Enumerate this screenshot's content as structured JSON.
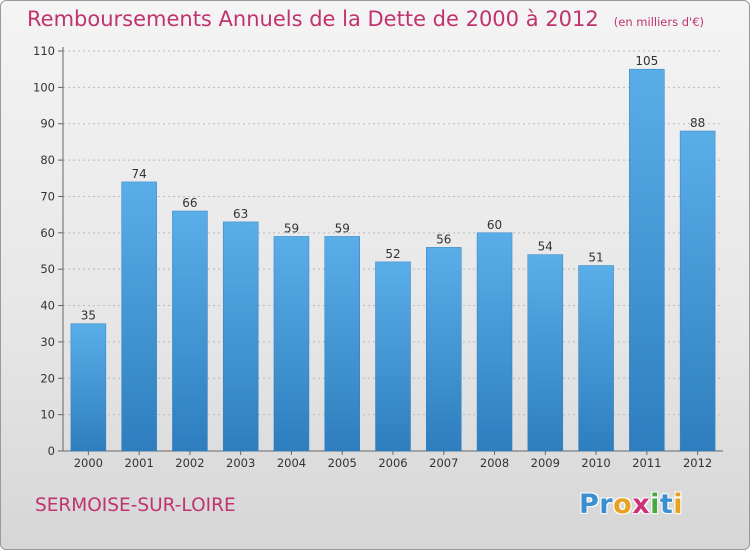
{
  "header": {
    "title": "Remboursements Annuels de la Dette de 2000 à 2012",
    "unit": "(en milliers d'€)"
  },
  "footer": {
    "town": "SERMOISE-SUR-LOIRE",
    "logo_letters": [
      {
        "ch": "P",
        "color": "#3a8fd0"
      },
      {
        "ch": "r",
        "color": "#3a8fd0"
      },
      {
        "ch": "o",
        "color": "#e8a020"
      },
      {
        "ch": "x",
        "color": "#d02f7a"
      },
      {
        "ch": "i",
        "color": "#4aa840"
      },
      {
        "ch": "t",
        "color": "#3a8fd0"
      },
      {
        "ch": "i",
        "color": "#e8a020"
      }
    ]
  },
  "colors": {
    "title": "#c0336f",
    "bar_top": "#5aaee8",
    "bar_bottom": "#2e7ebf",
    "grid": "#bbbbbb"
  },
  "chart_data": {
    "type": "bar",
    "categories": [
      "2000",
      "2001",
      "2002",
      "2003",
      "2004",
      "2005",
      "2006",
      "2007",
      "2008",
      "2009",
      "2010",
      "2011",
      "2012"
    ],
    "values": [
      35,
      74,
      66,
      63,
      59,
      59,
      52,
      56,
      60,
      54,
      51,
      105,
      88
    ],
    "ylim": [
      0,
      110
    ],
    "yticks": [
      0,
      10,
      20,
      30,
      40,
      50,
      60,
      70,
      80,
      90,
      100,
      110
    ],
    "grid": true
  }
}
